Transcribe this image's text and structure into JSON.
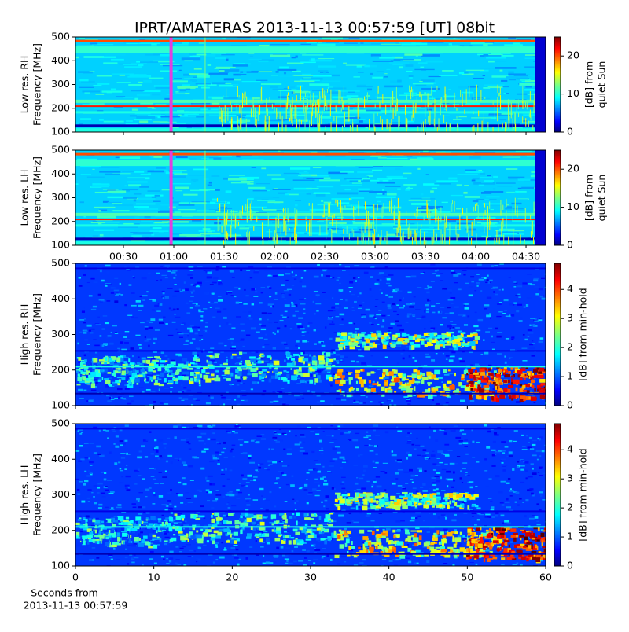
{
  "chart_data": [
    {
      "type": "heatmap",
      "title": "IPRT/AMATERAS 2013-11-13 00:57:59 [UT]   08bit",
      "ylabel": [
        "Low res. RH",
        "Frequency [MHz]"
      ],
      "ylim": [
        100,
        500
      ],
      "yticks": [
        100,
        200,
        300,
        400,
        500
      ],
      "colorbar_label": [
        "[dB] from",
        "quiet Sun"
      ],
      "clim": [
        0,
        25
      ],
      "colorbar_ticks": [
        0,
        10,
        20
      ]
    },
    {
      "type": "heatmap",
      "ylabel": [
        "Low res. LH",
        "Frequency [MHz]"
      ],
      "ylim": [
        100,
        500
      ],
      "yticks": [
        100,
        200,
        300,
        400,
        500
      ],
      "xlim": [
        1.4,
        281.7
      ],
      "xticks": [
        {
          "value": 30,
          "label": "00:30"
        },
        {
          "value": 60,
          "label": "01:00"
        },
        {
          "value": 90,
          "label": "01:30"
        },
        {
          "value": 120,
          "label": "02:00"
        },
        {
          "value": 150,
          "label": "02:30"
        },
        {
          "value": 180,
          "label": "03:00"
        },
        {
          "value": 210,
          "label": "03:30"
        },
        {
          "value": 240,
          "label": "04:00"
        },
        {
          "value": 270,
          "label": "04:30"
        }
      ],
      "colorbar_label": [
        "[dB] from",
        "quiet Sun"
      ],
      "clim": [
        0,
        25
      ],
      "colorbar_ticks": [
        0,
        10,
        20
      ]
    },
    {
      "type": "heatmap",
      "ylabel": [
        "High res. RH",
        "Frequency [MHz]"
      ],
      "ylim": [
        100,
        500
      ],
      "yticks": [
        100,
        200,
        300,
        400,
        500
      ],
      "colorbar_label": [
        "[dB] from min-hold"
      ],
      "clim": [
        0,
        4.9
      ],
      "colorbar_ticks": [
        0,
        1,
        2,
        3,
        4
      ]
    },
    {
      "type": "heatmap",
      "ylabel": [
        "High res. LH",
        "Frequency [MHz]"
      ],
      "ylim": [
        100,
        500
      ],
      "yticks": [
        100,
        200,
        300,
        400,
        500
      ],
      "xlim": [
        0,
        60
      ],
      "xticks": [
        0,
        10,
        20,
        30,
        40,
        50,
        60
      ],
      "xlabel": [
        "Seconds from",
        "2013-11-13 00:57:59"
      ],
      "colorbar_label": [
        "[dB] from min-hold"
      ],
      "clim": [
        0,
        4.9
      ],
      "colorbar_ticks": [
        0,
        1,
        2,
        3,
        4
      ]
    }
  ]
}
